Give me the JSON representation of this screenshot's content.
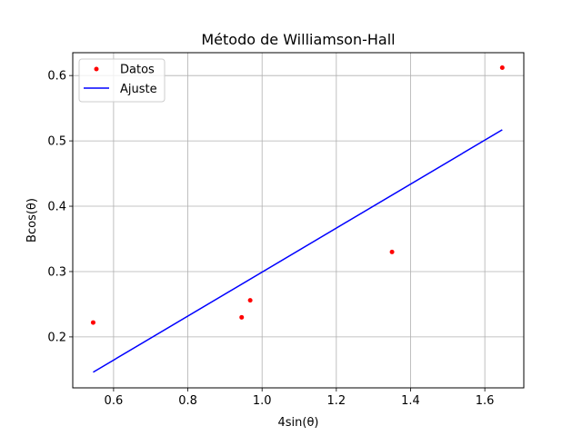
{
  "chart_data": {
    "type": "scatter",
    "title": "Método de Williamson-Hall",
    "xlabel": "4sin(θ)",
    "ylabel": "Bcos(θ)",
    "xlim": [
      0.49,
      1.705
    ],
    "ylim": [
      0.122,
      0.635
    ],
    "xticks": [
      0.6,
      0.8,
      1.0,
      1.2,
      1.4,
      1.6
    ],
    "yticks": [
      0.2,
      0.3,
      0.4,
      0.5,
      0.6
    ],
    "xtick_labels": [
      "0.6",
      "0.8",
      "1.0",
      "1.2",
      "1.4",
      "1.6"
    ],
    "ytick_labels": [
      "0.2",
      "0.3",
      "0.4",
      "0.5",
      "0.6"
    ],
    "grid": true,
    "legend_position": "top-left",
    "series": [
      {
        "name": "Datos",
        "kind": "points",
        "color": "#ff0000",
        "x": [
          0.545,
          0.945,
          0.968,
          1.35,
          1.647
        ],
        "y": [
          0.222,
          0.23,
          0.256,
          0.33,
          0.612
        ]
      },
      {
        "name": "Ajuste",
        "kind": "line",
        "color": "#0000ff",
        "x": [
          0.545,
          1.647
        ],
        "y": [
          0.146,
          0.517
        ]
      }
    ]
  }
}
